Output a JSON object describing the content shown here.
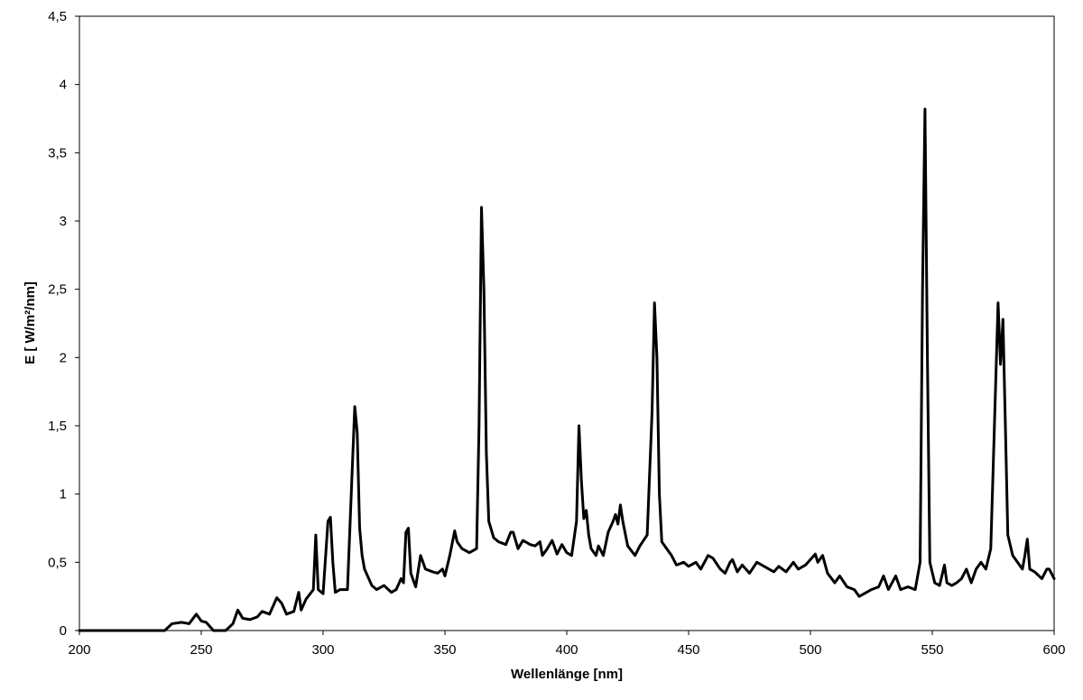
{
  "chart_data": {
    "type": "line",
    "xlabel": "Wellenlänge [nm]",
    "ylabel": "E [ W/m²/nm]",
    "xlim": [
      200,
      600
    ],
    "ylim": [
      0,
      4.5
    ],
    "x_ticks": [
      200,
      250,
      300,
      350,
      400,
      450,
      500,
      550,
      600
    ],
    "x_tick_labels": [
      "200",
      "250",
      "300",
      "350",
      "400",
      "450",
      "500",
      "550",
      "600"
    ],
    "y_ticks": [
      0,
      0.5,
      1,
      1.5,
      2,
      2.5,
      3,
      3.5,
      4,
      4.5
    ],
    "y_tick_labels": [
      "0",
      "0,5",
      "1",
      "1,5",
      "2",
      "2,5",
      "3",
      "3,5",
      "4",
      "4,5"
    ],
    "grid": false,
    "series": [
      {
        "color": "#000000",
        "points": [
          [
            200,
            0
          ],
          [
            235,
            0
          ],
          [
            238,
            0.05
          ],
          [
            242,
            0.06
          ],
          [
            245,
            0.05
          ],
          [
            248,
            0.12
          ],
          [
            250,
            0.07
          ],
          [
            252,
            0.06
          ],
          [
            255,
            0
          ],
          [
            260,
            0
          ],
          [
            263,
            0.05
          ],
          [
            265,
            0.15
          ],
          [
            267,
            0.09
          ],
          [
            270,
            0.08
          ],
          [
            273,
            0.1
          ],
          [
            275,
            0.14
          ],
          [
            278,
            0.12
          ],
          [
            281,
            0.24
          ],
          [
            283,
            0.2
          ],
          [
            285,
            0.12
          ],
          [
            288,
            0.14
          ],
          [
            290,
            0.28
          ],
          [
            291,
            0.15
          ],
          [
            293,
            0.23
          ],
          [
            296,
            0.3
          ],
          [
            297,
            0.7
          ],
          [
            298,
            0.3
          ],
          [
            300,
            0.27
          ],
          [
            302,
            0.8
          ],
          [
            303,
            0.83
          ],
          [
            304,
            0.5
          ],
          [
            305,
            0.28
          ],
          [
            307,
            0.3
          ],
          [
            310,
            0.3
          ],
          [
            312,
            1.2
          ],
          [
            313,
            1.64
          ],
          [
            314,
            1.45
          ],
          [
            315,
            0.75
          ],
          [
            316,
            0.55
          ],
          [
            317,
            0.45
          ],
          [
            320,
            0.33
          ],
          [
            322,
            0.3
          ],
          [
            325,
            0.33
          ],
          [
            328,
            0.28
          ],
          [
            330,
            0.3
          ],
          [
            332,
            0.38
          ],
          [
            333,
            0.35
          ],
          [
            334,
            0.72
          ],
          [
            335,
            0.75
          ],
          [
            336,
            0.42
          ],
          [
            338,
            0.32
          ],
          [
            340,
            0.55
          ],
          [
            342,
            0.45
          ],
          [
            345,
            0.43
          ],
          [
            347,
            0.42
          ],
          [
            349,
            0.45
          ],
          [
            350,
            0.4
          ],
          [
            352,
            0.55
          ],
          [
            354,
            0.73
          ],
          [
            355,
            0.65
          ],
          [
            357,
            0.6
          ],
          [
            360,
            0.57
          ],
          [
            363,
            0.6
          ],
          [
            364,
            1.5
          ],
          [
            365,
            3.1
          ],
          [
            366,
            2.5
          ],
          [
            367,
            1.3
          ],
          [
            368,
            0.8
          ],
          [
            370,
            0.68
          ],
          [
            372,
            0.65
          ],
          [
            375,
            0.63
          ],
          [
            377,
            0.72
          ],
          [
            378,
            0.72
          ],
          [
            380,
            0.6
          ],
          [
            382,
            0.66
          ],
          [
            385,
            0.63
          ],
          [
            387,
            0.62
          ],
          [
            389,
            0.65
          ],
          [
            390,
            0.55
          ],
          [
            392,
            0.6
          ],
          [
            394,
            0.66
          ],
          [
            396,
            0.56
          ],
          [
            398,
            0.63
          ],
          [
            400,
            0.57
          ],
          [
            402,
            0.55
          ],
          [
            404,
            0.8
          ],
          [
            405,
            1.5
          ],
          [
            406,
            1.1
          ],
          [
            407,
            0.82
          ],
          [
            408,
            0.88
          ],
          [
            409,
            0.7
          ],
          [
            410,
            0.6
          ],
          [
            412,
            0.55
          ],
          [
            413,
            0.62
          ],
          [
            415,
            0.55
          ],
          [
            417,
            0.72
          ],
          [
            419,
            0.8
          ],
          [
            420,
            0.85
          ],
          [
            421,
            0.78
          ],
          [
            422,
            0.92
          ],
          [
            423,
            0.8
          ],
          [
            425,
            0.62
          ],
          [
            428,
            0.55
          ],
          [
            430,
            0.62
          ],
          [
            433,
            0.7
          ],
          [
            435,
            1.6
          ],
          [
            436,
            2.4
          ],
          [
            437,
            2.0
          ],
          [
            438,
            1.0
          ],
          [
            439,
            0.65
          ],
          [
            441,
            0.6
          ],
          [
            443,
            0.55
          ],
          [
            445,
            0.48
          ],
          [
            448,
            0.5
          ],
          [
            450,
            0.47
          ],
          [
            453,
            0.5
          ],
          [
            455,
            0.45
          ],
          [
            458,
            0.55
          ],
          [
            460,
            0.53
          ],
          [
            463,
            0.45
          ],
          [
            465,
            0.42
          ],
          [
            467,
            0.5
          ],
          [
            468,
            0.52
          ],
          [
            470,
            0.43
          ],
          [
            472,
            0.48
          ],
          [
            475,
            0.42
          ],
          [
            478,
            0.5
          ],
          [
            480,
            0.48
          ],
          [
            483,
            0.45
          ],
          [
            485,
            0.43
          ],
          [
            487,
            0.47
          ],
          [
            490,
            0.43
          ],
          [
            493,
            0.5
          ],
          [
            495,
            0.45
          ],
          [
            498,
            0.48
          ],
          [
            500,
            0.52
          ],
          [
            502,
            0.56
          ],
          [
            503,
            0.5
          ],
          [
            505,
            0.55
          ],
          [
            507,
            0.42
          ],
          [
            510,
            0.35
          ],
          [
            512,
            0.4
          ],
          [
            515,
            0.32
          ],
          [
            518,
            0.3
          ],
          [
            520,
            0.25
          ],
          [
            523,
            0.28
          ],
          [
            525,
            0.3
          ],
          [
            528,
            0.32
          ],
          [
            530,
            0.4
          ],
          [
            532,
            0.3
          ],
          [
            535,
            0.4
          ],
          [
            537,
            0.3
          ],
          [
            540,
            0.32
          ],
          [
            543,
            0.3
          ],
          [
            545,
            0.5
          ],
          [
            546,
            2.5
          ],
          [
            547,
            3.82
          ],
          [
            548,
            2.0
          ],
          [
            549,
            0.5
          ],
          [
            551,
            0.35
          ],
          [
            553,
            0.33
          ],
          [
            555,
            0.48
          ],
          [
            556,
            0.35
          ],
          [
            558,
            0.33
          ],
          [
            560,
            0.35
          ],
          [
            562,
            0.38
          ],
          [
            564,
            0.45
          ],
          [
            566,
            0.35
          ],
          [
            568,
            0.45
          ],
          [
            570,
            0.5
          ],
          [
            572,
            0.45
          ],
          [
            574,
            0.6
          ],
          [
            576,
            1.8
          ],
          [
            577,
            2.4
          ],
          [
            578,
            1.95
          ],
          [
            579,
            2.28
          ],
          [
            580,
            1.5
          ],
          [
            581,
            0.7
          ],
          [
            583,
            0.55
          ],
          [
            585,
            0.5
          ],
          [
            587,
            0.45
          ],
          [
            588,
            0.55
          ],
          [
            589,
            0.67
          ],
          [
            590,
            0.45
          ],
          [
            592,
            0.43
          ],
          [
            595,
            0.38
          ],
          [
            597,
            0.45
          ],
          [
            598,
            0.45
          ],
          [
            600,
            0.38
          ]
        ]
      }
    ]
  }
}
